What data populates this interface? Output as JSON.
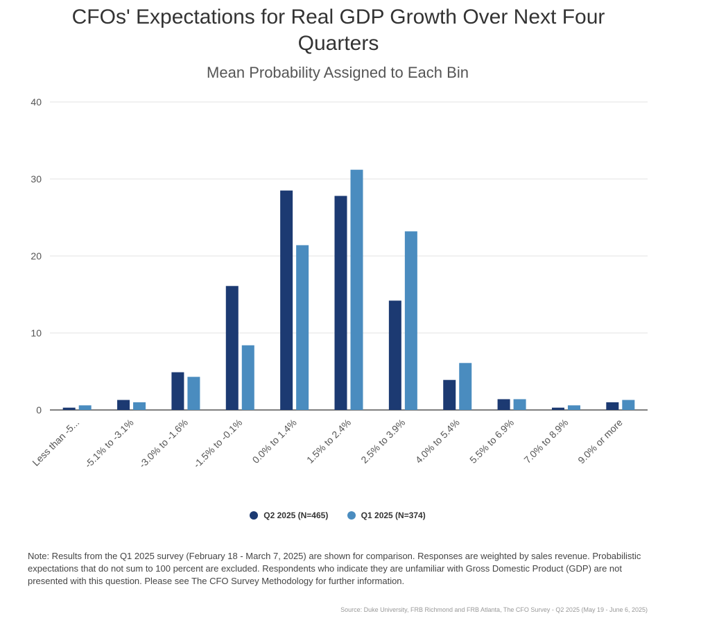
{
  "chart_data": {
    "type": "bar",
    "title": "CFOs' Expectations for Real GDP Growth Over Next Four Quarters",
    "subtitle": "Mean Probability Assigned to Each Bin",
    "categories": [
      "Less than -5...",
      "-5.1% to -3.1%",
      "-3.0% to -1.6%",
      "-1.5% to -0.1%",
      "0.0% to 1.4%",
      "1.5% to 2.4%",
      "2.5% to 3.9%",
      "4.0% to 5.4%",
      "5.5% to 6.9%",
      "7.0% to 8.9%",
      "9.0% or more"
    ],
    "series": [
      {
        "name": "Q2 2025 (N=465)",
        "color": "#1c3a72",
        "values": [
          0.3,
          1.3,
          4.9,
          16.1,
          28.5,
          27.8,
          14.2,
          3.9,
          1.4,
          0.3,
          1.0
        ]
      },
      {
        "name": "Q1 2025 (N=374)",
        "color": "#4a8cbf",
        "values": [
          0.6,
          1.0,
          4.3,
          8.4,
          21.4,
          31.2,
          23.2,
          6.1,
          1.4,
          0.6,
          1.3
        ]
      }
    ],
    "ylim": [
      0,
      40
    ],
    "yticks": [
      0,
      10,
      20,
      30,
      40
    ],
    "grid": true,
    "legend_position": "bottom"
  },
  "note": "Note: Results from the Q1 2025 survey (February 18 - March 7, 2025) are shown for comparison. Responses are weighted by sales revenue. Probabilistic expectations that do not sum to 100 percent are excluded. Respondents who indicate they are unfamiliar with Gross Domestic Product (GDP) are not presented with this question. Please see The CFO Survey Methodology for further information.",
  "source": "Source: Duke University, FRB Richmond and FRB Atlanta, The CFO Survey - Q2 2025 (May 19 - June 6, 2025)"
}
